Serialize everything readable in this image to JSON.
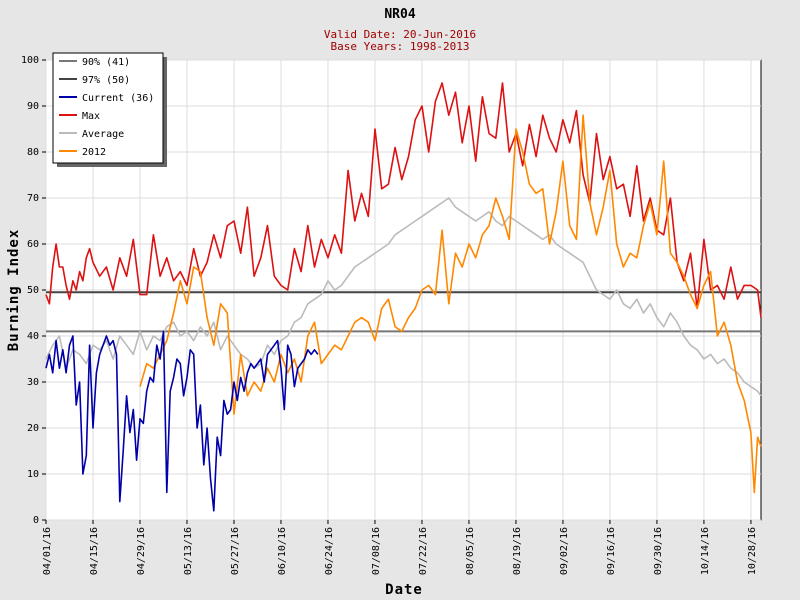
{
  "chart_data": {
    "type": "line",
    "title": "NR04",
    "subtitle_lines": [
      "Valid Date: 20-Jun-2016",
      "Base Years: 1998-2013"
    ],
    "xlabel": "Date",
    "ylabel": "Burning Index",
    "ylim": [
      0,
      100
    ],
    "yticks": [
      0,
      10,
      20,
      30,
      40,
      50,
      60,
      70,
      80,
      90,
      100
    ],
    "x_start_date": "04/01",
    "x_range_days": [
      0,
      213
    ],
    "xticks": [
      {
        "day": 0,
        "label": "04/01/16"
      },
      {
        "day": 14,
        "label": "04/15/16"
      },
      {
        "day": 28,
        "label": "04/29/16"
      },
      {
        "day": 42,
        "label": "05/13/16"
      },
      {
        "day": 56,
        "label": "05/27/16"
      },
      {
        "day": 70,
        "label": "06/10/16"
      },
      {
        "day": 84,
        "label": "06/24/16"
      },
      {
        "day": 98,
        "label": "07/08/16"
      },
      {
        "day": 112,
        "label": "07/22/16"
      },
      {
        "day": 126,
        "label": "08/05/16"
      },
      {
        "day": 140,
        "label": "08/19/16"
      },
      {
        "day": 154,
        "label": "09/02/16"
      },
      {
        "day": 168,
        "label": "09/16/16"
      },
      {
        "day": 182,
        "label": "09/30/16"
      },
      {
        "day": 196,
        "label": "10/14/16"
      },
      {
        "day": 210,
        "label": "10/28/16"
      }
    ],
    "grid": true,
    "legend_position": "top-left",
    "legend": [
      {
        "label": "90% (41)",
        "color": "#777777"
      },
      {
        "label": "97% (50)",
        "color": "#444444"
      },
      {
        "label": "Current (36)",
        "color": "#0000aa"
      },
      {
        "label": "Max",
        "color": "#dd1111"
      },
      {
        "label": "Average",
        "color": "#bbbbbb"
      },
      {
        "label": "2012",
        "color": "#ff8800"
      }
    ],
    "thresholds": [
      {
        "name": "90% (41)",
        "value": 41,
        "color": "#777777"
      },
      {
        "name": "97% (50)",
        "value": 49.5,
        "color": "#444444"
      }
    ],
    "series": [
      {
        "name": "Max",
        "color": "#dd1111",
        "x_days": [
          0,
          1,
          2,
          3,
          4,
          5,
          6,
          7,
          8,
          9,
          10,
          11,
          12,
          13,
          14,
          16,
          18,
          20,
          22,
          24,
          26,
          28,
          30,
          32,
          34,
          36,
          38,
          40,
          42,
          44,
          46,
          48,
          50,
          52,
          54,
          56,
          58,
          60,
          62,
          64,
          66,
          68,
          70,
          72,
          74,
          76,
          78,
          80,
          82,
          84,
          86,
          88,
          90,
          92,
          94,
          96,
          98,
          100,
          102,
          104,
          106,
          108,
          110,
          112,
          114,
          116,
          118,
          120,
          122,
          124,
          126,
          128,
          130,
          132,
          134,
          136,
          138,
          140,
          142,
          144,
          146,
          148,
          150,
          152,
          154,
          156,
          158,
          160,
          162,
          164,
          166,
          168,
          170,
          172,
          174,
          176,
          178,
          180,
          182,
          184,
          186,
          188,
          190,
          192,
          194,
          196,
          198,
          200,
          202,
          204,
          206,
          208,
          210,
          212,
          213
        ],
        "values": [
          49,
          47,
          55,
          60,
          55,
          55,
          51,
          48,
          52,
          50,
          54,
          52,
          57,
          59,
          56,
          53,
          55,
          50,
          57,
          53,
          61,
          49,
          49,
          62,
          53,
          57,
          52,
          54,
          51,
          59,
          53,
          56,
          62,
          57,
          64,
          65,
          58,
          68,
          53,
          57,
          64,
          53,
          51,
          50,
          59,
          54,
          64,
          55,
          61,
          57,
          62,
          58,
          76,
          65,
          71,
          66,
          85,
          72,
          73,
          81,
          74,
          79,
          87,
          90,
          80,
          91,
          95,
          88,
          93,
          82,
          90,
          78,
          92,
          84,
          83,
          95,
          80,
          84,
          77,
          86,
          79,
          88,
          83,
          80,
          87,
          82,
          89,
          75,
          69,
          84,
          74,
          79,
          72,
          73,
          66,
          77,
          65,
          70,
          63,
          62,
          70,
          56,
          52,
          58,
          46,
          61,
          50,
          51,
          48,
          55,
          48,
          51,
          51,
          50,
          44
        ]
      },
      {
        "name": "Average",
        "color": "#bbbbbb",
        "x_days": [
          0,
          2,
          4,
          6,
          8,
          10,
          12,
          14,
          16,
          18,
          20,
          22,
          24,
          26,
          28,
          30,
          32,
          34,
          36,
          38,
          40,
          42,
          44,
          46,
          48,
          50,
          52,
          54,
          56,
          58,
          60,
          62,
          64,
          66,
          68,
          70,
          72,
          74,
          76,
          78,
          80,
          82,
          84,
          86,
          88,
          90,
          92,
          94,
          96,
          98,
          100,
          102,
          104,
          106,
          108,
          110,
          112,
          114,
          116,
          118,
          120,
          122,
          124,
          126,
          128,
          130,
          132,
          134,
          136,
          138,
          140,
          142,
          144,
          146,
          148,
          150,
          152,
          154,
          156,
          158,
          160,
          162,
          164,
          166,
          168,
          170,
          172,
          174,
          176,
          178,
          180,
          182,
          184,
          186,
          188,
          190,
          192,
          194,
          196,
          198,
          200,
          202,
          204,
          206,
          208,
          210,
          212,
          213
        ],
        "values": [
          35,
          38,
          40,
          33,
          37,
          36,
          34,
          38,
          37,
          39,
          35,
          40,
          38,
          36,
          41,
          37,
          40,
          39,
          42,
          43,
          40,
          41,
          39,
          42,
          40,
          43,
          37,
          40,
          38,
          36,
          35,
          33,
          34,
          38,
          36,
          39,
          40,
          43,
          44,
          47,
          48,
          49,
          52,
          50,
          51,
          53,
          55,
          56,
          57,
          58,
          59,
          60,
          62,
          63,
          64,
          65,
          66,
          67,
          68,
          69,
          70,
          68,
          67,
          66,
          65,
          66,
          67,
          65,
          64,
          66,
          65,
          64,
          63,
          62,
          61,
          62,
          60,
          59,
          58,
          57,
          56,
          53,
          50,
          49,
          48,
          50,
          47,
          46,
          48,
          45,
          47,
          44,
          42,
          45,
          43,
          40,
          38,
          37,
          35,
          36,
          34,
          35,
          33,
          32,
          30,
          29,
          28,
          27
        ]
      },
      {
        "name": "2012",
        "color": "#ff8800",
        "x_days": [
          28,
          30,
          32,
          34,
          36,
          38,
          40,
          42,
          44,
          46,
          48,
          50,
          52,
          54,
          56,
          58,
          60,
          62,
          64,
          66,
          68,
          70,
          72,
          74,
          76,
          78,
          80,
          82,
          84,
          86,
          88,
          90,
          92,
          94,
          96,
          98,
          100,
          102,
          104,
          106,
          108,
          110,
          112,
          114,
          116,
          118,
          120,
          122,
          124,
          126,
          128,
          130,
          132,
          134,
          136,
          138,
          140,
          142,
          144,
          146,
          148,
          150,
          152,
          154,
          156,
          158,
          160,
          162,
          164,
          166,
          168,
          170,
          172,
          174,
          176,
          178,
          180,
          182,
          184,
          186,
          188,
          190,
          192,
          194,
          196,
          198,
          200,
          202,
          204,
          206,
          208,
          210,
          211,
          212,
          213
        ],
        "values": [
          29,
          34,
          33,
          36,
          39,
          45,
          52,
          47,
          55,
          54,
          44,
          38,
          47,
          45,
          23,
          36,
          27,
          30,
          28,
          33,
          30,
          36,
          32,
          35,
          30,
          40,
          43,
          34,
          36,
          38,
          37,
          40,
          43,
          44,
          43,
          39,
          46,
          48,
          42,
          41,
          44,
          46,
          50,
          51,
          49,
          63,
          47,
          58,
          55,
          60,
          57,
          62,
          64,
          70,
          66,
          61,
          85,
          80,
          73,
          71,
          72,
          60,
          67,
          78,
          64,
          61,
          88,
          69,
          62,
          68,
          76,
          60,
          55,
          58,
          57,
          64,
          69,
          62,
          78,
          58,
          56,
          53,
          49,
          46,
          51,
          54,
          40,
          43,
          38,
          30,
          26,
          19,
          6,
          18,
          16
        ]
      },
      {
        "name": "Current (36)",
        "color": "#0000aa",
        "x_days": [
          0,
          1,
          2,
          3,
          4,
          5,
          6,
          7,
          8,
          9,
          10,
          11,
          12,
          13,
          14,
          15,
          16,
          17,
          18,
          19,
          20,
          21,
          22,
          23,
          24,
          25,
          26,
          27,
          28,
          29,
          30,
          31,
          32,
          33,
          34,
          35,
          36,
          37,
          38,
          39,
          40,
          41,
          42,
          43,
          44,
          45,
          46,
          47,
          48,
          49,
          50,
          51,
          52,
          53,
          54,
          55,
          56,
          57,
          58,
          59,
          60,
          61,
          62,
          63,
          64,
          65,
          66,
          67,
          68,
          69,
          70,
          71,
          72,
          73,
          74,
          75,
          76,
          77,
          78,
          79,
          80,
          81
        ],
        "values": [
          33,
          36,
          32,
          39,
          33,
          37,
          32,
          38,
          40,
          25,
          30,
          10,
          14,
          38,
          20,
          32,
          36,
          38,
          40,
          38,
          39,
          36,
          4,
          15,
          27,
          19,
          24,
          13,
          22,
          21,
          28,
          31,
          30,
          38,
          35,
          41,
          6,
          28,
          31,
          35,
          34,
          27,
          31,
          37,
          36,
          20,
          25,
          12,
          20,
          9,
          2,
          18,
          14,
          26,
          23,
          24,
          30,
          26,
          31,
          28,
          32,
          34,
          33,
          34,
          35,
          30,
          36,
          37,
          38,
          39,
          33,
          24,
          38,
          36,
          29,
          33,
          34,
          35,
          37,
          36,
          37,
          36
        ]
      }
    ]
  }
}
